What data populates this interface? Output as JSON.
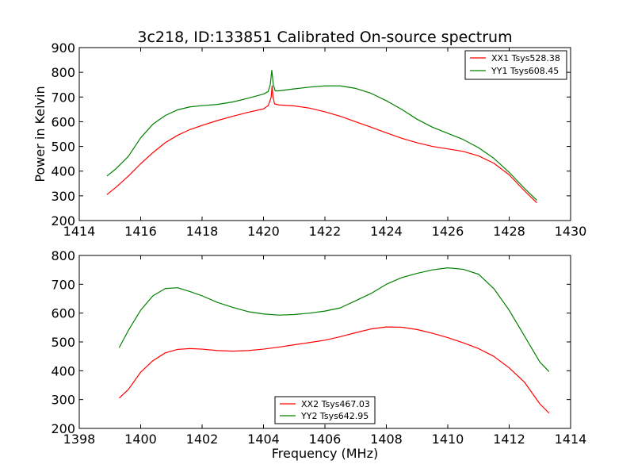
{
  "chart_data": [
    {
      "type": "line",
      "title": "3c218, ID:133851 Calibrated On-source spectrum",
      "xlabel": "",
      "ylabel": "Power in Kelvin",
      "xlim": [
        1414,
        1430
      ],
      "ylim": [
        200,
        900
      ],
      "xticks": [
        "1414",
        "1416",
        "1418",
        "1420",
        "1422",
        "1424",
        "1426",
        "1428",
        "1430"
      ],
      "yticks": [
        "200",
        "300",
        "400",
        "500",
        "600",
        "700",
        "800",
        "900"
      ],
      "legend_position": "top-right",
      "series": [
        {
          "name": "XX1 Tsys528.38",
          "color": "#ff0000",
          "points": [
            [
              1414.9,
              305
            ],
            [
              1415.2,
              335
            ],
            [
              1415.6,
              380
            ],
            [
              1416.0,
              430
            ],
            [
              1416.4,
              475
            ],
            [
              1416.8,
              515
            ],
            [
              1417.2,
              545
            ],
            [
              1417.6,
              568
            ],
            [
              1418.0,
              585
            ],
            [
              1418.5,
              605
            ],
            [
              1419.0,
              622
            ],
            [
              1419.5,
              638
            ],
            [
              1420.0,
              652
            ],
            [
              1420.15,
              665
            ],
            [
              1420.2,
              680
            ],
            [
              1420.25,
              700
            ],
            [
              1420.28,
              745
            ],
            [
              1420.31,
              700
            ],
            [
              1420.36,
              672
            ],
            [
              1420.5,
              668
            ],
            [
              1421.0,
              664
            ],
            [
              1421.5,
              655
            ],
            [
              1422.0,
              640
            ],
            [
              1422.5,
              622
            ],
            [
              1423.0,
              600
            ],
            [
              1423.5,
              578
            ],
            [
              1424.0,
              555
            ],
            [
              1424.5,
              533
            ],
            [
              1425.0,
              515
            ],
            [
              1425.5,
              500
            ],
            [
              1426.0,
              490
            ],
            [
              1426.5,
              480
            ],
            [
              1427.0,
              462
            ],
            [
              1427.5,
              432
            ],
            [
              1428.0,
              385
            ],
            [
              1428.5,
              320
            ],
            [
              1428.9,
              272
            ]
          ]
        },
        {
          "name": "YY1 Tsys608.45",
          "color": "#008000",
          "points": [
            [
              1414.9,
              380
            ],
            [
              1415.2,
              410
            ],
            [
              1415.6,
              460
            ],
            [
              1416.0,
              535
            ],
            [
              1416.4,
              590
            ],
            [
              1416.8,
              625
            ],
            [
              1417.2,
              648
            ],
            [
              1417.6,
              660
            ],
            [
              1418.0,
              665
            ],
            [
              1418.5,
              670
            ],
            [
              1419.0,
              680
            ],
            [
              1419.5,
              695
            ],
            [
              1420.0,
              712
            ],
            [
              1420.15,
              722
            ],
            [
              1420.22,
              750
            ],
            [
              1420.27,
              808
            ],
            [
              1420.32,
              750
            ],
            [
              1420.38,
              725
            ],
            [
              1420.5,
              725
            ],
            [
              1421.0,
              733
            ],
            [
              1421.5,
              740
            ],
            [
              1422.0,
              745
            ],
            [
              1422.5,
              745
            ],
            [
              1423.0,
              735
            ],
            [
              1423.5,
              715
            ],
            [
              1424.0,
              685
            ],
            [
              1424.5,
              650
            ],
            [
              1425.0,
              610
            ],
            [
              1425.5,
              578
            ],
            [
              1426.0,
              553
            ],
            [
              1426.5,
              528
            ],
            [
              1427.0,
              495
            ],
            [
              1427.5,
              452
            ],
            [
              1428.0,
              395
            ],
            [
              1428.5,
              330
            ],
            [
              1428.9,
              282
            ]
          ]
        }
      ]
    },
    {
      "type": "line",
      "title": "",
      "xlabel": "Frequency (MHz)",
      "ylabel": "",
      "xlim": [
        1398,
        1414
      ],
      "ylim": [
        200,
        800
      ],
      "xticks": [
        "1398",
        "1400",
        "1402",
        "1404",
        "1406",
        "1408",
        "1410",
        "1412",
        "1414"
      ],
      "yticks": [
        "200",
        "300",
        "400",
        "500",
        "600",
        "700",
        "800"
      ],
      "legend_position": "bottom-center",
      "series": [
        {
          "name": "XX2 Tsys467.03",
          "color": "#ff0000",
          "points": [
            [
              1399.3,
              305
            ],
            [
              1399.6,
              335
            ],
            [
              1400.0,
              395
            ],
            [
              1400.4,
              435
            ],
            [
              1400.8,
              462
            ],
            [
              1401.2,
              474
            ],
            [
              1401.6,
              477
            ],
            [
              1402.0,
              475
            ],
            [
              1402.5,
              470
            ],
            [
              1403.0,
              468
            ],
            [
              1403.5,
              470
            ],
            [
              1404.0,
              475
            ],
            [
              1404.5,
              482
            ],
            [
              1405.0,
              490
            ],
            [
              1405.5,
              498
            ],
            [
              1406.0,
              506
            ],
            [
              1406.5,
              518
            ],
            [
              1407.0,
              532
            ],
            [
              1407.5,
              545
            ],
            [
              1408.0,
              552
            ],
            [
              1408.5,
              551
            ],
            [
              1409.0,
              543
            ],
            [
              1409.5,
              530
            ],
            [
              1410.0,
              515
            ],
            [
              1410.5,
              497
            ],
            [
              1411.0,
              477
            ],
            [
              1411.5,
              450
            ],
            [
              1412.0,
              410
            ],
            [
              1412.5,
              360
            ],
            [
              1413.0,
              285
            ],
            [
              1413.3,
              253
            ]
          ]
        },
        {
          "name": "YY2 Tsys642.95",
          "color": "#008000",
          "points": [
            [
              1399.3,
              480
            ],
            [
              1399.6,
              540
            ],
            [
              1400.0,
              610
            ],
            [
              1400.4,
              660
            ],
            [
              1400.8,
              685
            ],
            [
              1401.2,
              688
            ],
            [
              1401.6,
              675
            ],
            [
              1402.0,
              660
            ],
            [
              1402.5,
              637
            ],
            [
              1403.0,
              620
            ],
            [
              1403.5,
              605
            ],
            [
              1404.0,
              597
            ],
            [
              1404.5,
              593
            ],
            [
              1405.0,
              595
            ],
            [
              1405.5,
              600
            ],
            [
              1406.0,
              607
            ],
            [
              1406.5,
              618
            ],
            [
              1407.0,
              643
            ],
            [
              1407.5,
              668
            ],
            [
              1408.0,
              700
            ],
            [
              1408.5,
              723
            ],
            [
              1409.0,
              738
            ],
            [
              1409.5,
              750
            ],
            [
              1410.0,
              757
            ],
            [
              1410.5,
              752
            ],
            [
              1411.0,
              735
            ],
            [
              1411.5,
              685
            ],
            [
              1412.0,
              610
            ],
            [
              1412.5,
              520
            ],
            [
              1413.0,
              430
            ],
            [
              1413.3,
              397
            ]
          ]
        }
      ]
    }
  ]
}
